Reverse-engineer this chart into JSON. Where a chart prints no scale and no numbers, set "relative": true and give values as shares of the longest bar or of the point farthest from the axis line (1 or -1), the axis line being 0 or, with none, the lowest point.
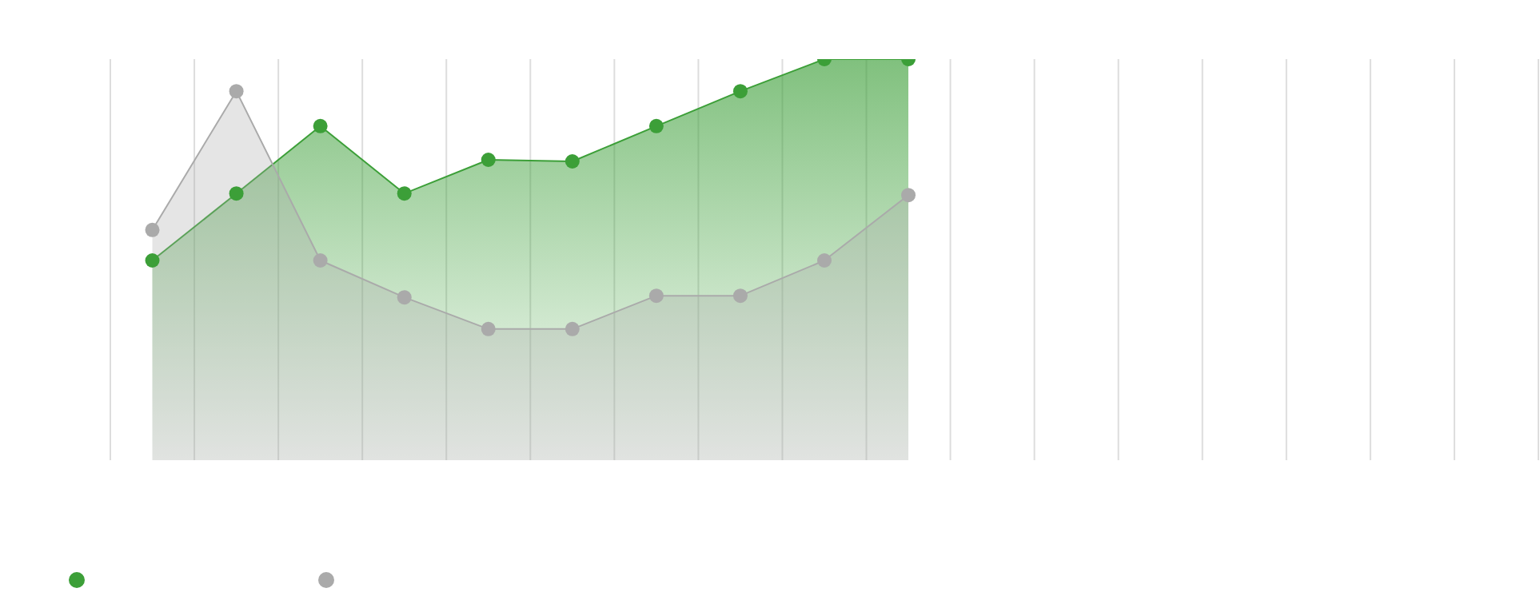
{
  "chart_data": {
    "type": "area",
    "relative": true,
    "categories": [
      null,
      null,
      null,
      null,
      null,
      null,
      null,
      null,
      null,
      null,
      null,
      null,
      null,
      null,
      null,
      null,
      null
    ],
    "series": [
      {
        "color": "#3c9f38",
        "values": [
          0.498,
          0.665,
          0.833,
          0.665,
          0.749,
          0.745,
          0.833,
          0.92,
          1,
          1,
          null,
          null,
          null,
          null,
          null,
          null,
          null
        ]
      },
      {
        "color": "#aaaaaa",
        "values": [
          0.574,
          0.92,
          0.498,
          0.406,
          0.327,
          0.327,
          0.41,
          0.41,
          0.498,
          0.661,
          null,
          null,
          null,
          null,
          null,
          null,
          null
        ]
      }
    ],
    "grid": "x",
    "marker": "circle"
  }
}
